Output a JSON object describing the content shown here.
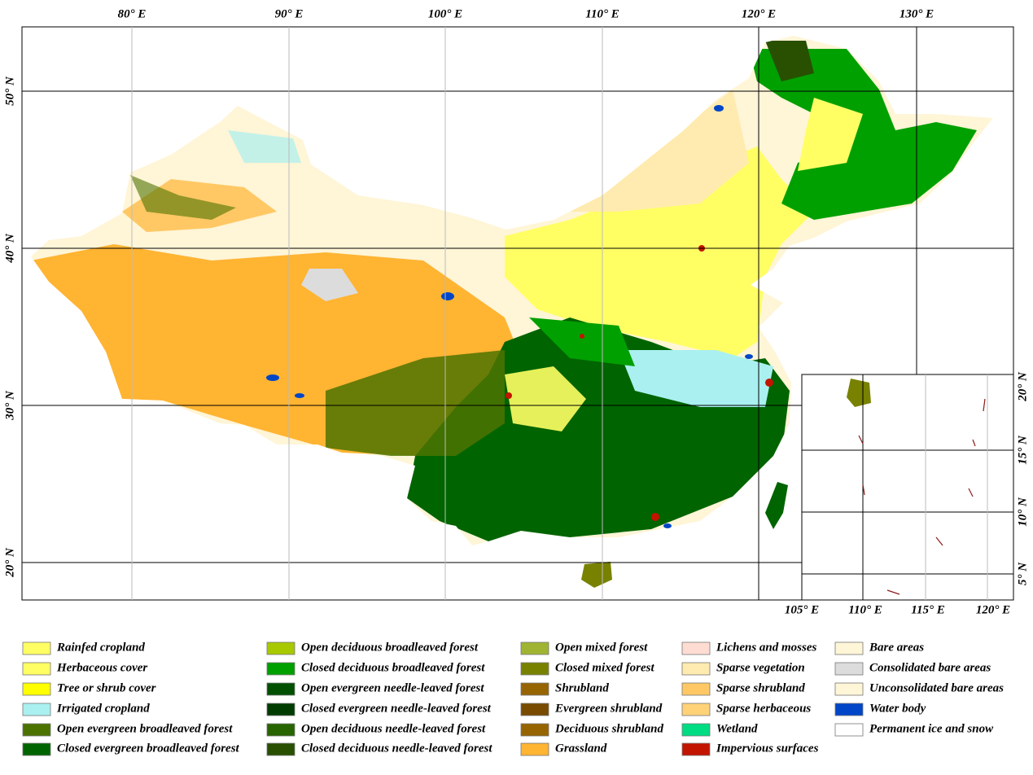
{
  "map": {
    "top_labels": [
      "80° E",
      "90° E",
      "100° E",
      "110° E",
      "120° E",
      "130° E"
    ],
    "left_labels": [
      "50° N",
      "40° N",
      "30° N",
      "20° N"
    ],
    "inset_bottom_labels": [
      "105° E",
      "110° E",
      "115° E",
      "120° E"
    ],
    "inset_right_labels": [
      "20° N",
      "15° N",
      "10° N",
      "5° N"
    ]
  },
  "legend": [
    {
      "label": "Rainfed cropland",
      "color": "#ffff64"
    },
    {
      "label": "Herbaceous cover",
      "color": "#ffff64"
    },
    {
      "label": "Tree or shrub cover",
      "color": "#ffff00"
    },
    {
      "label": "Irrigated cropland",
      "color": "#aaf0f0"
    },
    {
      "label": "Open evergreen broadleaved forest",
      "color": "#4c7300"
    },
    {
      "label": "Closed evergreen broadleaved forest",
      "color": "#006400"
    },
    {
      "label": "Open deciduous broadleaved forest",
      "color": "#a8c800"
    },
    {
      "label": "Closed deciduous broadleaved forest",
      "color": "#00a000"
    },
    {
      "label": "Open evergreen needle-leaved forest",
      "color": "#005000"
    },
    {
      "label": "Closed evergreen needle-leaved forest",
      "color": "#003c00"
    },
    {
      "label": "Open deciduous needle-leaved forest",
      "color": "#286400"
    },
    {
      "label": "Closed deciduous needle-leaved forest",
      "color": "#285000"
    },
    {
      "label": "Open mixed forest",
      "color": "#a0b432"
    },
    {
      "label": "Closed mixed forest",
      "color": "#788200"
    },
    {
      "label": "Shrubland",
      "color": "#966400"
    },
    {
      "label": "Evergreen shrubland",
      "color": "#784b00"
    },
    {
      "label": "Deciduous shrubland",
      "color": "#966400"
    },
    {
      "label": "Grassland",
      "color": "#ffb432"
    },
    {
      "label": "Lichens and mosses",
      "color": "#ffdcd2"
    },
    {
      "label": "Sparse vegetation",
      "color": "#ffebaf"
    },
    {
      "label": "Sparse shrubland",
      "color": "#ffc864"
    },
    {
      "label": "Sparse herbaceous",
      "color": "#ffd278"
    },
    {
      "label": "Wetland",
      "color": "#00dc82"
    },
    {
      "label": "Impervious surfaces",
      "color": "#c31400"
    },
    {
      "label": "Bare areas",
      "color": "#fff5d7"
    },
    {
      "label": "Consolidated bare areas",
      "color": "#dcdcdc"
    },
    {
      "label": "Unconsolidated bare areas",
      "color": "#fff5d7"
    },
    {
      "label": "Water body",
      "color": "#0046c8"
    },
    {
      "label": "Permanent ice and snow",
      "color": "#ffffff"
    }
  ]
}
